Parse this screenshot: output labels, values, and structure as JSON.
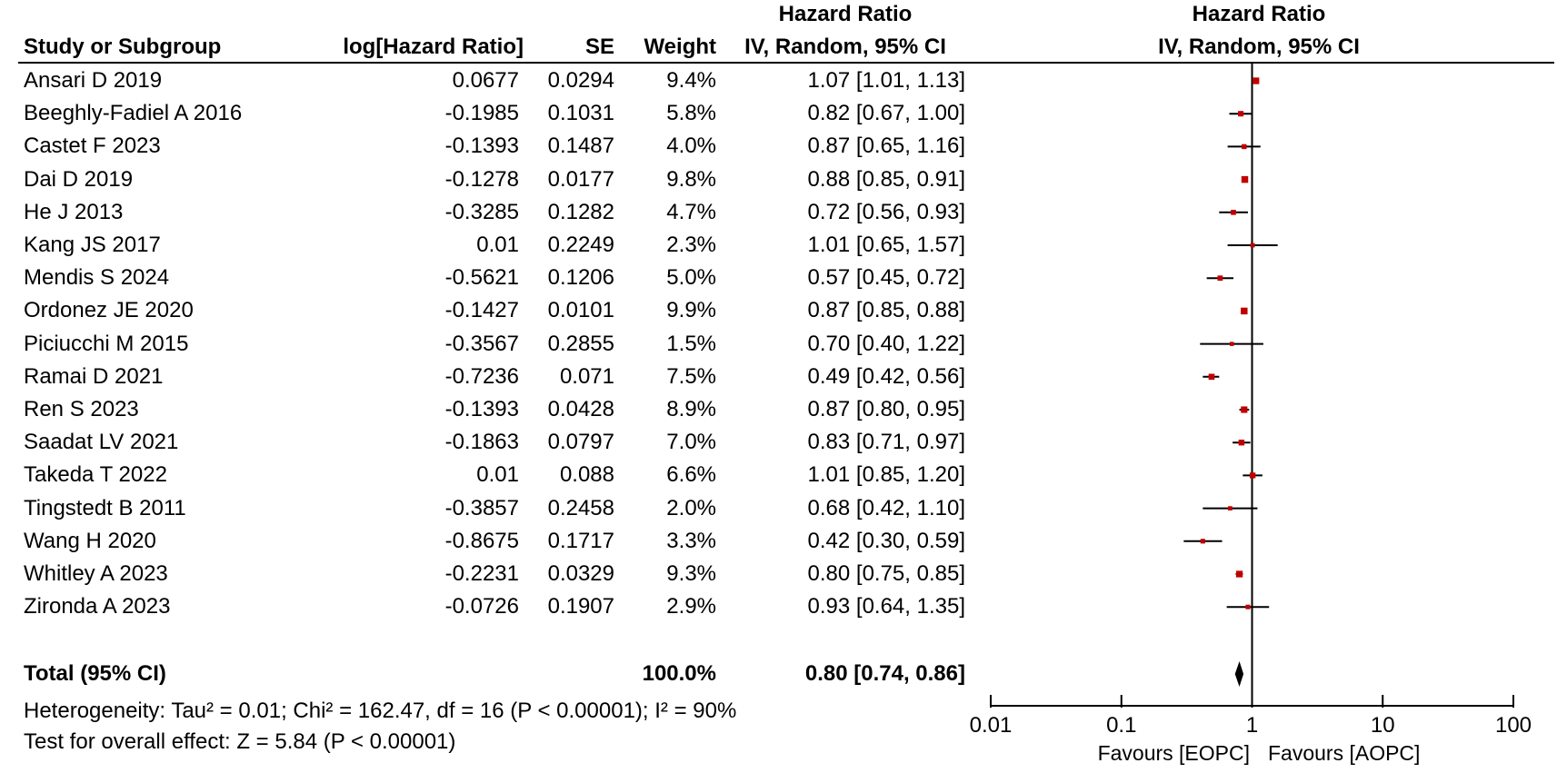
{
  "headers": {
    "study": "Study or Subgroup",
    "loghr": "log[Hazard Ratio]",
    "se": "SE",
    "weight": "Weight",
    "hr_top": "Hazard Ratio",
    "hr_bottom": "IV, Random, 95% CI",
    "plot_top": "Hazard Ratio",
    "plot_bottom": "IV, Random, 95% CI"
  },
  "studies": [
    {
      "name": "Ansari D 2019",
      "loghr": "0.0677",
      "se": "0.0294",
      "weight": "9.4%",
      "ci": "1.07 [1.01, 1.13]"
    },
    {
      "name": "Beeghly-Fadiel A 2016",
      "loghr": "-0.1985",
      "se": "0.1031",
      "weight": "5.8%",
      "ci": "0.82 [0.67, 1.00]"
    },
    {
      "name": "Castet F 2023",
      "loghr": "-0.1393",
      "se": "0.1487",
      "weight": "4.0%",
      "ci": "0.87 [0.65, 1.16]"
    },
    {
      "name": "Dai D 2019",
      "loghr": "-0.1278",
      "se": "0.0177",
      "weight": "9.8%",
      "ci": "0.88 [0.85, 0.91]"
    },
    {
      "name": "He J 2013",
      "loghr": "-0.3285",
      "se": "0.1282",
      "weight": "4.7%",
      "ci": "0.72 [0.56, 0.93]"
    },
    {
      "name": "Kang JS 2017",
      "loghr": "0.01",
      "se": "0.2249",
      "weight": "2.3%",
      "ci": "1.01 [0.65, 1.57]"
    },
    {
      "name": "Mendis S 2024",
      "loghr": "-0.5621",
      "se": "0.1206",
      "weight": "5.0%",
      "ci": "0.57 [0.45, 0.72]"
    },
    {
      "name": "Ordonez JE 2020",
      "loghr": "-0.1427",
      "se": "0.0101",
      "weight": "9.9%",
      "ci": "0.87 [0.85, 0.88]"
    },
    {
      "name": "Piciucchi M 2015",
      "loghr": "-0.3567",
      "se": "0.2855",
      "weight": "1.5%",
      "ci": "0.70 [0.40, 1.22]"
    },
    {
      "name": "Ramai D 2021",
      "loghr": "-0.7236",
      "se": "0.071",
      "weight": "7.5%",
      "ci": "0.49 [0.42, 0.56]"
    },
    {
      "name": "Ren S 2023",
      "loghr": "-0.1393",
      "se": "0.0428",
      "weight": "8.9%",
      "ci": "0.87 [0.80, 0.95]"
    },
    {
      "name": "Saadat LV 2021",
      "loghr": "-0.1863",
      "se": "0.0797",
      "weight": "7.0%",
      "ci": "0.83 [0.71, 0.97]"
    },
    {
      "name": "Takeda T 2022",
      "loghr": "0.01",
      "se": "0.088",
      "weight": "6.6%",
      "ci": "1.01 [0.85, 1.20]"
    },
    {
      "name": "Tingstedt B 2011",
      "loghr": "-0.3857",
      "se": "0.2458",
      "weight": "2.0%",
      "ci": "0.68 [0.42, 1.10]"
    },
    {
      "name": "Wang H 2020",
      "loghr": "-0.8675",
      "se": "0.1717",
      "weight": "3.3%",
      "ci": "0.42 [0.30, 0.59]"
    },
    {
      "name": "Whitley A 2023",
      "loghr": "-0.2231",
      "se": "0.0329",
      "weight": "9.3%",
      "ci": "0.80 [0.75, 0.85]"
    },
    {
      "name": "Zironda A 2023",
      "loghr": "-0.0726",
      "se": "0.1907",
      "weight": "2.9%",
      "ci": "0.93 [0.64, 1.35]"
    }
  ],
  "total": {
    "label": "Total (95% CI)",
    "weight": "100.0%",
    "ci": "0.80 [0.74, 0.86]"
  },
  "heterogeneity": "Heterogeneity: Tau² = 0.01; Chi² = 162.47, df = 16 (P < 0.00001); I² = 90%",
  "overall_effect": "Test for overall effect: Z = 5.84 (P < 0.00001)",
  "axis": {
    "ticks": [
      "0.01",
      "0.1",
      "1",
      "10",
      "100"
    ],
    "favours_left": "Favours [EOPC]",
    "favours_right": "Favours [AOPC]"
  },
  "colors": {
    "marker": "#c00000",
    "line": "#000000"
  },
  "chart_data": {
    "type": "forest",
    "x_scale": "log",
    "xlim": [
      0.01,
      100
    ],
    "null_line": 1,
    "points": [
      {
        "label": "Ansari D 2019",
        "hr": 1.07,
        "lo": 1.01,
        "hi": 1.13,
        "weight": 9.4
      },
      {
        "label": "Beeghly-Fadiel A 2016",
        "hr": 0.82,
        "lo": 0.67,
        "hi": 1.0,
        "weight": 5.8
      },
      {
        "label": "Castet F 2023",
        "hr": 0.87,
        "lo": 0.65,
        "hi": 1.16,
        "weight": 4.0
      },
      {
        "label": "Dai D 2019",
        "hr": 0.88,
        "lo": 0.85,
        "hi": 0.91,
        "weight": 9.8
      },
      {
        "label": "He J 2013",
        "hr": 0.72,
        "lo": 0.56,
        "hi": 0.93,
        "weight": 4.7
      },
      {
        "label": "Kang JS 2017",
        "hr": 1.01,
        "lo": 0.65,
        "hi": 1.57,
        "weight": 2.3
      },
      {
        "label": "Mendis S 2024",
        "hr": 0.57,
        "lo": 0.45,
        "hi": 0.72,
        "weight": 5.0
      },
      {
        "label": "Ordonez JE 2020",
        "hr": 0.87,
        "lo": 0.85,
        "hi": 0.88,
        "weight": 9.9
      },
      {
        "label": "Piciucchi M 2015",
        "hr": 0.7,
        "lo": 0.4,
        "hi": 1.22,
        "weight": 1.5
      },
      {
        "label": "Ramai D 2021",
        "hr": 0.49,
        "lo": 0.42,
        "hi": 0.56,
        "weight": 7.5
      },
      {
        "label": "Ren S 2023",
        "hr": 0.87,
        "lo": 0.8,
        "hi": 0.95,
        "weight": 8.9
      },
      {
        "label": "Saadat LV 2021",
        "hr": 0.83,
        "lo": 0.71,
        "hi": 0.97,
        "weight": 7.0
      },
      {
        "label": "Takeda T 2022",
        "hr": 1.01,
        "lo": 0.85,
        "hi": 1.2,
        "weight": 6.6
      },
      {
        "label": "Tingstedt B 2011",
        "hr": 0.68,
        "lo": 0.42,
        "hi": 1.1,
        "weight": 2.0
      },
      {
        "label": "Wang H 2020",
        "hr": 0.42,
        "lo": 0.3,
        "hi": 0.59,
        "weight": 3.3
      },
      {
        "label": "Whitley A 2023",
        "hr": 0.8,
        "lo": 0.75,
        "hi": 0.85,
        "weight": 9.3
      },
      {
        "label": "Zironda A 2023",
        "hr": 0.93,
        "lo": 0.64,
        "hi": 1.35,
        "weight": 2.9
      }
    ],
    "pooled": {
      "label": "Total (95% CI)",
      "hr": 0.8,
      "lo": 0.74,
      "hi": 0.86
    }
  }
}
